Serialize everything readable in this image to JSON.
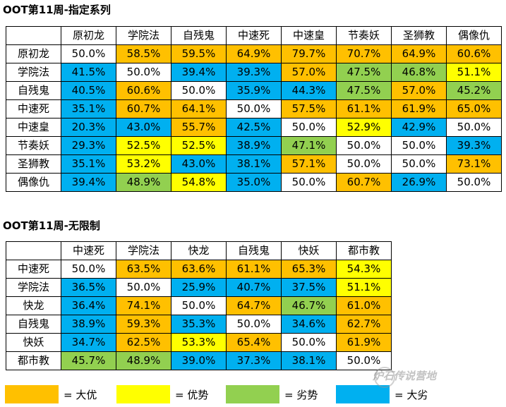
{
  "section1": {
    "title": "OOT第11周-指定系列",
    "headers": [
      "",
      "原初龙",
      "学院法",
      "自残鬼",
      "中速死",
      "中速皇",
      "节奏妖",
      "圣狮教",
      "偶像仇"
    ],
    "rows": [
      {
        "label": "原初龙",
        "cells": [
          [
            "50.0%",
            "white"
          ],
          [
            "58.5%",
            "orange"
          ],
          [
            "59.5%",
            "orange"
          ],
          [
            "64.9%",
            "orange"
          ],
          [
            "79.7%",
            "orange"
          ],
          [
            "70.7%",
            "orange"
          ],
          [
            "64.9%",
            "orange"
          ],
          [
            "60.6%",
            "orange"
          ]
        ]
      },
      {
        "label": "学院法",
        "cells": [
          [
            "41.5%",
            "blue"
          ],
          [
            "50.0%",
            "white"
          ],
          [
            "39.4%",
            "blue"
          ],
          [
            "39.3%",
            "blue"
          ],
          [
            "57.0%",
            "orange"
          ],
          [
            "47.5%",
            "green"
          ],
          [
            "46.8%",
            "green"
          ],
          [
            "51.1%",
            "yellow"
          ]
        ]
      },
      {
        "label": "自残鬼",
        "cells": [
          [
            "40.5%",
            "blue"
          ],
          [
            "60.6%",
            "orange"
          ],
          [
            "50.0%",
            "white"
          ],
          [
            "35.9%",
            "blue"
          ],
          [
            "44.3%",
            "blue"
          ],
          [
            "47.5%",
            "green"
          ],
          [
            "57.0%",
            "orange"
          ],
          [
            "45.2%",
            "green"
          ]
        ]
      },
      {
        "label": "中速死",
        "cells": [
          [
            "35.1%",
            "blue"
          ],
          [
            "60.7%",
            "orange"
          ],
          [
            "64.1%",
            "orange"
          ],
          [
            "50.0%",
            "white"
          ],
          [
            "57.5%",
            "orange"
          ],
          [
            "61.1%",
            "orange"
          ],
          [
            "61.9%",
            "orange"
          ],
          [
            "65.0%",
            "orange"
          ]
        ]
      },
      {
        "label": "中速皇",
        "cells": [
          [
            "20.3%",
            "blue"
          ],
          [
            "43.0%",
            "blue"
          ],
          [
            "55.7%",
            "orange"
          ],
          [
            "42.5%",
            "blue"
          ],
          [
            "50.0%",
            "white"
          ],
          [
            "52.9%",
            "yellow"
          ],
          [
            "42.9%",
            "blue"
          ],
          [
            "50.0%",
            "white"
          ]
        ]
      },
      {
        "label": "节奏妖",
        "cells": [
          [
            "29.3%",
            "blue"
          ],
          [
            "52.5%",
            "yellow"
          ],
          [
            "52.5%",
            "yellow"
          ],
          [
            "38.9%",
            "blue"
          ],
          [
            "47.1%",
            "green"
          ],
          [
            "50.0%",
            "white"
          ],
          [
            "50.0%",
            "white"
          ],
          [
            "39.3%",
            "blue"
          ]
        ]
      },
      {
        "label": "圣狮教",
        "cells": [
          [
            "35.1%",
            "blue"
          ],
          [
            "53.2%",
            "yellow"
          ],
          [
            "43.0%",
            "blue"
          ],
          [
            "38.1%",
            "blue"
          ],
          [
            "57.1%",
            "orange"
          ],
          [
            "50.0%",
            "white"
          ],
          [
            "50.0%",
            "white"
          ],
          [
            "73.1%",
            "orange"
          ]
        ]
      },
      {
        "label": "偶像仇",
        "cells": [
          [
            "39.4%",
            "blue"
          ],
          [
            "48.9%",
            "green"
          ],
          [
            "54.8%",
            "yellow"
          ],
          [
            "35.0%",
            "blue"
          ],
          [
            "50.0%",
            "white"
          ],
          [
            "60.7%",
            "orange"
          ],
          [
            "26.9%",
            "blue"
          ],
          [
            "50.0%",
            "white"
          ]
        ]
      }
    ]
  },
  "section2": {
    "title": "OOT第11周-无限制",
    "headers": [
      "",
      "中速死",
      "学院法",
      "快龙",
      "自残鬼",
      "快妖",
      "都市教"
    ],
    "rows": [
      {
        "label": "中速死",
        "cells": [
          [
            "50.0%",
            "white"
          ],
          [
            "63.5%",
            "orange"
          ],
          [
            "63.6%",
            "orange"
          ],
          [
            "61.1%",
            "orange"
          ],
          [
            "65.3%",
            "orange"
          ],
          [
            "54.3%",
            "yellow"
          ]
        ]
      },
      {
        "label": "学院法",
        "cells": [
          [
            "36.5%",
            "blue"
          ],
          [
            "50.0%",
            "white"
          ],
          [
            "25.9%",
            "blue"
          ],
          [
            "40.7%",
            "blue"
          ],
          [
            "37.5%",
            "blue"
          ],
          [
            "51.1%",
            "yellow"
          ]
        ]
      },
      {
        "label": "快龙",
        "cells": [
          [
            "36.4%",
            "blue"
          ],
          [
            "74.1%",
            "orange"
          ],
          [
            "50.0%",
            "white"
          ],
          [
            "64.7%",
            "orange"
          ],
          [
            "46.7%",
            "green"
          ],
          [
            "61.0%",
            "orange"
          ]
        ]
      },
      {
        "label": "自残鬼",
        "cells": [
          [
            "38.9%",
            "blue"
          ],
          [
            "59.3%",
            "orange"
          ],
          [
            "35.3%",
            "blue"
          ],
          [
            "50.0%",
            "white"
          ],
          [
            "34.6%",
            "blue"
          ],
          [
            "62.7%",
            "orange"
          ]
        ]
      },
      {
        "label": "快妖",
        "cells": [
          [
            "34.7%",
            "blue"
          ],
          [
            "62.5%",
            "orange"
          ],
          [
            "53.3%",
            "yellow"
          ],
          [
            "65.4%",
            "orange"
          ],
          [
            "50.0%",
            "white"
          ],
          [
            "61.9%",
            "orange"
          ]
        ]
      },
      {
        "label": "都市教",
        "cells": [
          [
            "45.7%",
            "green"
          ],
          [
            "48.9%",
            "green"
          ],
          [
            "39.0%",
            "blue"
          ],
          [
            "37.3%",
            "blue"
          ],
          [
            "38.1%",
            "blue"
          ],
          [
            "50.0%",
            "white"
          ]
        ]
      }
    ]
  },
  "colors": {
    "orange": "#ffc000",
    "yellow": "#ffff00",
    "green": "#92d050",
    "blue": "#00b0f0",
    "white": "#ffffff"
  },
  "legend": [
    {
      "color": "orange",
      "label": "= 大优"
    },
    {
      "color": "yellow",
      "label": "= 优势"
    },
    {
      "color": "green",
      "label": "= 劣势"
    },
    {
      "color": "blue",
      "label": "= 大劣"
    }
  ],
  "watermark": "炉石传说营地"
}
